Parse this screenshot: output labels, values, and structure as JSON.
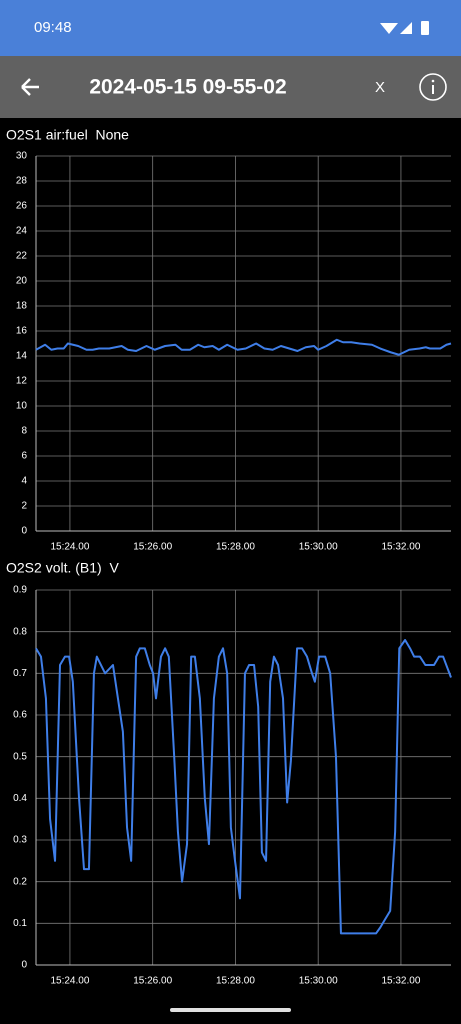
{
  "status_bar": {
    "time": "09:48"
  },
  "header": {
    "title": "2024-05-15 09-55-02",
    "close": "X"
  },
  "chart_data": [
    {
      "type": "line",
      "title": "O2S1 air:fuel  None",
      "grid": true,
      "xlim": [
        23.18,
        33.21
      ],
      "xticks": [
        {
          "value": 24,
          "label": "15:24.00"
        },
        {
          "value": 26,
          "label": "15:26.00"
        },
        {
          "value": 28,
          "label": "15:28.00"
        },
        {
          "value": 30,
          "label": "15:30.00"
        },
        {
          "value": 32,
          "label": "15:32.00"
        }
      ],
      "ylim": [
        0,
        30
      ],
      "yticks": [
        0,
        2,
        4,
        6,
        8,
        10,
        12,
        14,
        16,
        18,
        20,
        22,
        24,
        26,
        28,
        30
      ],
      "series": [
        {
          "name": "O2S1 air:fuel",
          "color": "#3f7ee8",
          "x": [
            23.18,
            23.4,
            23.55,
            23.7,
            23.85,
            23.95,
            24.2,
            24.4,
            24.55,
            24.7,
            24.95,
            25.25,
            25.4,
            25.6,
            25.85,
            26.05,
            26.3,
            26.55,
            26.7,
            26.9,
            27.1,
            27.25,
            27.45,
            27.6,
            27.8,
            28.05,
            28.25,
            28.5,
            28.7,
            28.9,
            29.1,
            29.3,
            29.5,
            29.7,
            29.9,
            30.0,
            30.2,
            30.45,
            30.6,
            30.8,
            31.0,
            31.3,
            31.5,
            31.75,
            31.95,
            32.2,
            32.45,
            32.6,
            32.7,
            32.95,
            33.1,
            33.21
          ],
          "values": [
            14.5,
            14.9,
            14.5,
            14.6,
            14.6,
            15.0,
            14.8,
            14.5,
            14.5,
            14.6,
            14.6,
            14.8,
            14.5,
            14.4,
            14.8,
            14.5,
            14.8,
            14.9,
            14.5,
            14.5,
            14.9,
            14.7,
            14.8,
            14.5,
            14.9,
            14.5,
            14.6,
            15.0,
            14.6,
            14.5,
            14.8,
            14.6,
            14.4,
            14.7,
            14.8,
            14.5,
            14.8,
            15.3,
            15.1,
            15.1,
            15.0,
            14.9,
            14.6,
            14.3,
            14.1,
            14.5,
            14.6,
            14.7,
            14.6,
            14.6,
            14.9,
            15.0
          ]
        }
      ]
    },
    {
      "type": "line",
      "title": "O2S2 volt. (B1)  V",
      "grid": true,
      "xlim": [
        23.18,
        33.21
      ],
      "xticks": [
        {
          "value": 24,
          "label": "15:24.00"
        },
        {
          "value": 26,
          "label": "15:26.00"
        },
        {
          "value": 28,
          "label": "15:28.00"
        },
        {
          "value": 30,
          "label": "15:30.00"
        },
        {
          "value": 32,
          "label": "15:32.00"
        }
      ],
      "ylim": [
        0,
        0.9
      ],
      "yticks": [
        0,
        0.1,
        0.2,
        0.3,
        0.4,
        0.5,
        0.6,
        0.7,
        0.8,
        0.9
      ],
      "series": [
        {
          "name": "O2S2 volt. (B1)",
          "color": "#3f7ee8",
          "x": [
            23.18,
            23.3,
            23.42,
            23.52,
            23.64,
            23.76,
            23.88,
            23.98,
            24.07,
            24.22,
            24.34,
            24.46,
            24.58,
            24.65,
            24.85,
            25.04,
            25.16,
            25.28,
            25.38,
            25.48,
            25.6,
            25.69,
            25.81,
            25.93,
            26.01,
            26.08,
            26.2,
            26.3,
            26.39,
            26.52,
            26.61,
            26.71,
            26.83,
            26.93,
            27.02,
            27.14,
            27.26,
            27.36,
            27.48,
            27.6,
            27.7,
            27.8,
            27.89,
            27.99,
            28.11,
            28.23,
            28.33,
            28.45,
            28.55,
            28.64,
            28.74,
            28.84,
            28.93,
            29.03,
            29.15,
            29.25,
            29.34,
            29.49,
            29.61,
            29.73,
            29.85,
            29.92,
            30.02,
            30.17,
            30.29,
            30.43,
            30.55,
            31.4,
            31.5,
            31.62,
            31.74,
            31.86,
            31.96,
            32.1,
            32.22,
            32.32,
            32.46,
            32.59,
            32.8,
            32.92,
            33.02,
            33.21
          ],
          "values": [
            0.76,
            0.74,
            0.64,
            0.35,
            0.25,
            0.72,
            0.74,
            0.74,
            0.68,
            0.4,
            0.23,
            0.23,
            0.7,
            0.74,
            0.7,
            0.72,
            0.64,
            0.56,
            0.33,
            0.25,
            0.74,
            0.76,
            0.76,
            0.72,
            0.7,
            0.64,
            0.74,
            0.76,
            0.74,
            0.5,
            0.32,
            0.2,
            0.29,
            0.74,
            0.74,
            0.64,
            0.4,
            0.29,
            0.64,
            0.74,
            0.76,
            0.7,
            0.33,
            0.25,
            0.16,
            0.7,
            0.72,
            0.72,
            0.62,
            0.27,
            0.25,
            0.68,
            0.74,
            0.72,
            0.64,
            0.39,
            0.49,
            0.76,
            0.76,
            0.74,
            0.7,
            0.68,
            0.74,
            0.74,
            0.7,
            0.5,
            0.076,
            0.076,
            0.09,
            0.11,
            0.13,
            0.32,
            0.76,
            0.78,
            0.76,
            0.74,
            0.74,
            0.72,
            0.72,
            0.74,
            0.74,
            0.69
          ]
        }
      ]
    }
  ]
}
